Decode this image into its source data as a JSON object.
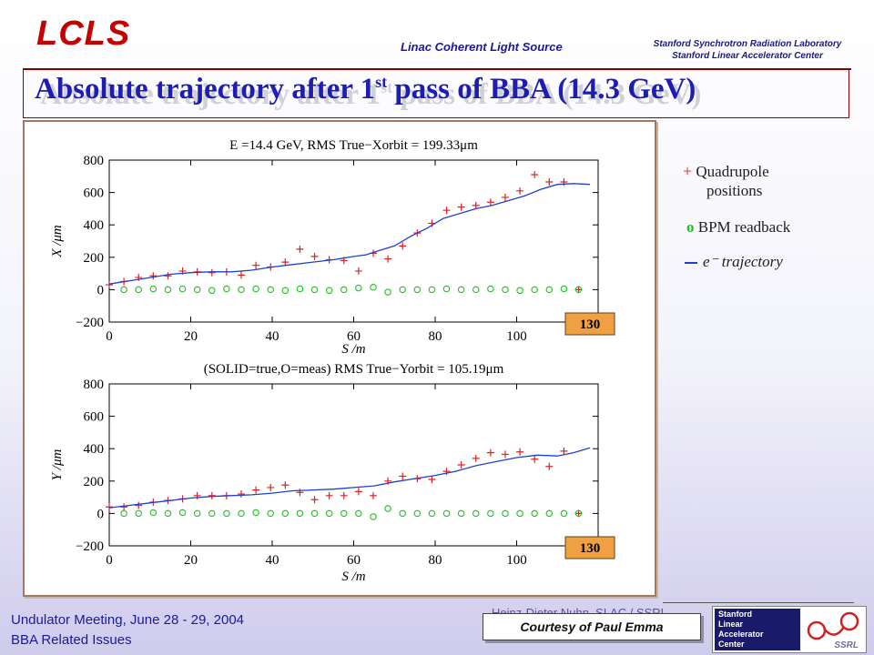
{
  "header": {
    "logo": "LCLS",
    "full_name": "Linac Coherent Light Source",
    "lab_line1": "Stanford Synchrotron Radiation Laboratory",
    "lab_line2": "Stanford Linear Accelerator Center"
  },
  "slide": {
    "title_main": "Absolute trajectory after 1",
    "title_sup": "st",
    "title_end": " pass of BBA (14.3 GeV)"
  },
  "legend": {
    "quad_marker": "+",
    "quad_label_1": "Quadrupole",
    "quad_label_2": "positions",
    "bpm_marker": "o",
    "bpm_label": "BPM readback",
    "traj_label": "e⁻ trajectory"
  },
  "footer": {
    "meeting": "Undulator Meeting, June 28 - 29, 2004",
    "topic": "BBA Related Issues",
    "partial_text": "Heinz-Dieter Nuhn, SLAC / SSRL",
    "courtesy": "Courtesy of Paul Emma",
    "slac_l1": "Stanford",
    "slac_l2": "Linear",
    "slac_l3": "Accelerator",
    "slac_l4": "Center",
    "ssrl": "SSRL"
  },
  "colors": {
    "title": "#1d1db4",
    "quad": "#e02020",
    "bpm": "#20c020",
    "trajectory": "#2040d0",
    "badge": "#f0a040"
  },
  "chart_data": [
    {
      "type": "scatter",
      "title": "E =14.4 GeV, RMS True−Xorbit = 199.33μm",
      "xlabel": "S /m",
      "ylabel": "X /μm",
      "xlim": [
        0,
        120
      ],
      "ylim": [
        -200,
        800
      ],
      "xticks": [
        0,
        20,
        40,
        60,
        80,
        100
      ],
      "yticks": [
        -200,
        0,
        200,
        400,
        600,
        800
      ],
      "xtick_labels": [
        "0",
        "20",
        "40",
        "60",
        "80",
        "100"
      ],
      "ytick_labels": [
        "−200",
        "0",
        "200",
        "400",
        "600",
        "800"
      ],
      "badge": "130",
      "series": [
        {
          "name": "Quadrupole positions",
          "marker": "+",
          "x": [
            0,
            3.6,
            7.2,
            10.8,
            14.4,
            18,
            21.6,
            25.2,
            28.8,
            32.4,
            36,
            39.6,
            43.2,
            46.8,
            50.4,
            54,
            57.6,
            61.2,
            64.8,
            68.4,
            72,
            75.6,
            79.2,
            82.8,
            86.4,
            90,
            93.6,
            97.2,
            100.8,
            104.4,
            108,
            111.6,
            115.2
          ],
          "y": [
            30,
            50,
            75,
            85,
            85,
            115,
            110,
            105,
            110,
            90,
            150,
            140,
            170,
            250,
            205,
            185,
            180,
            115,
            225,
            190,
            270,
            350,
            410,
            490,
            510,
            520,
            540,
            570,
            610,
            710,
            665,
            665,
            0
          ]
        },
        {
          "name": "BPM readback",
          "marker": "o",
          "x": [
            3.6,
            7.2,
            10.8,
            14.4,
            18,
            21.6,
            25.2,
            28.8,
            32.4,
            36,
            39.6,
            43.2,
            46.8,
            50.4,
            54,
            57.6,
            61.2,
            64.8,
            68.4,
            72,
            75.6,
            79.2,
            82.8,
            86.4,
            90,
            93.6,
            97.2,
            100.8,
            104.4,
            108,
            111.6,
            115.2
          ],
          "y": [
            0,
            0,
            5,
            0,
            5,
            0,
            -5,
            5,
            0,
            5,
            0,
            -5,
            5,
            0,
            -5,
            0,
            10,
            15,
            -15,
            0,
            0,
            0,
            5,
            0,
            0,
            5,
            0,
            -5,
            0,
            0,
            5,
            0
          ]
        },
        {
          "name": "e⁻ trajectory",
          "marker": "line",
          "x": [
            0,
            5,
            10,
            15,
            20,
            25,
            30,
            35,
            40,
            45,
            50,
            55,
            60,
            63,
            66,
            70,
            74,
            78,
            82,
            86,
            90,
            94,
            98,
            102,
            106,
            110,
            114,
            118
          ],
          "y": [
            35,
            55,
            75,
            95,
            105,
            110,
            110,
            120,
            140,
            155,
            170,
            185,
            205,
            215,
            240,
            270,
            330,
            380,
            440,
            470,
            500,
            520,
            550,
            580,
            620,
            650,
            655,
            650
          ]
        }
      ]
    },
    {
      "type": "scatter",
      "title": "(SOLID=true,O=meas) RMS True−Yorbit = 105.19μm",
      "xlabel": "S /m",
      "ylabel": "Y /μm",
      "xlim": [
        0,
        120
      ],
      "ylim": [
        -200,
        800
      ],
      "xticks": [
        0,
        20,
        40,
        60,
        80,
        100
      ],
      "yticks": [
        -200,
        0,
        200,
        400,
        600,
        800
      ],
      "xtick_labels": [
        "0",
        "20",
        "40",
        "60",
        "80",
        "100"
      ],
      "ytick_labels": [
        "−200",
        "0",
        "200",
        "400",
        "600",
        "800"
      ],
      "badge": "130",
      "series": [
        {
          "name": "Quadrupole positions",
          "marker": "+",
          "x": [
            0,
            3.6,
            7.2,
            10.8,
            14.4,
            18,
            21.6,
            25.2,
            28.8,
            32.4,
            36,
            39.6,
            43.2,
            46.8,
            50.4,
            54,
            57.6,
            61.2,
            64.8,
            68.4,
            72,
            75.6,
            79.2,
            82.8,
            86.4,
            90,
            93.6,
            97.2,
            100.8,
            104.4,
            108,
            111.6,
            115.2
          ],
          "y": [
            40,
            40,
            50,
            70,
            80,
            90,
            110,
            110,
            110,
            120,
            145,
            160,
            175,
            130,
            85,
            110,
            110,
            135,
            110,
            200,
            230,
            215,
            210,
            260,
            300,
            340,
            375,
            365,
            380,
            335,
            290,
            385,
            0
          ]
        },
        {
          "name": "BPM readback",
          "marker": "o",
          "x": [
            3.6,
            7.2,
            10.8,
            14.4,
            18,
            21.6,
            25.2,
            28.8,
            32.4,
            36,
            39.6,
            43.2,
            46.8,
            50.4,
            54,
            57.6,
            61.2,
            64.8,
            68.4,
            72,
            75.6,
            79.2,
            82.8,
            86.4,
            90,
            93.6,
            97.2,
            100.8,
            104.4,
            108,
            111.6,
            115.2
          ],
          "y": [
            0,
            0,
            5,
            0,
            5,
            0,
            0,
            0,
            0,
            5,
            0,
            0,
            0,
            0,
            0,
            0,
            0,
            -20,
            30,
            0,
            0,
            0,
            0,
            0,
            0,
            0,
            0,
            0,
            0,
            0,
            0,
            0
          ]
        },
        {
          "name": "e⁻ trajectory",
          "marker": "line",
          "x": [
            0,
            5,
            10,
            15,
            20,
            25,
            30,
            35,
            40,
            45,
            50,
            55,
            60,
            65,
            70,
            75,
            80,
            85,
            90,
            95,
            100,
            105,
            110,
            114,
            118
          ],
          "y": [
            35,
            50,
            65,
            80,
            95,
            105,
            110,
            115,
            125,
            140,
            145,
            150,
            160,
            170,
            195,
            215,
            235,
            260,
            295,
            320,
            345,
            360,
            355,
            375,
            405
          ]
        }
      ]
    }
  ]
}
